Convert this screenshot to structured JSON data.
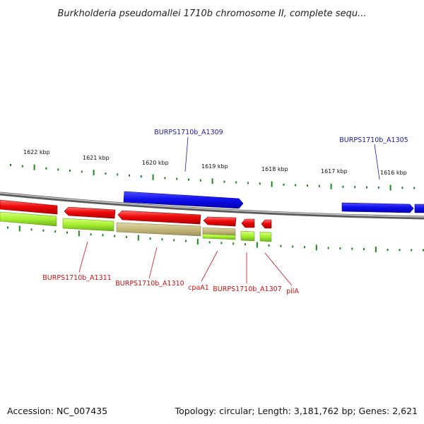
{
  "title": "Burkholderia pseudomallei 1710b chromosome II, complete sequ...",
  "footer": {
    "accession": "Accession: NC_007435",
    "topology": "Topology: circular; Length: 3,181,762 bp; Genes: 2,621"
  },
  "colors": {
    "tick": "#1a8a1a",
    "axis": "#8a8a8a",
    "forward_gene": "#1010ee",
    "reverse_gene": "#ee0a0a",
    "product_band": "#a8f030",
    "product_band_alt": "#c4b87a",
    "forward_label": "#1a1aa0",
    "reverse_label": "#cc1111"
  },
  "scale_labels": [
    "1622 kbp",
    "1621 kbp",
    "1620 kbp",
    "1619 kbp",
    "1618 kbp",
    "1617 kbp",
    "1616 kbp"
  ],
  "forward_labels": [
    "BURPS1710b_A1309",
    "BURPS1710b_A1305"
  ],
  "reverse_labels": [
    "BURPS1710b_A1311",
    "BURPS1710b_A1310",
    "cpaA1",
    "BURPS1710b_A1307",
    "pilA"
  ]
}
